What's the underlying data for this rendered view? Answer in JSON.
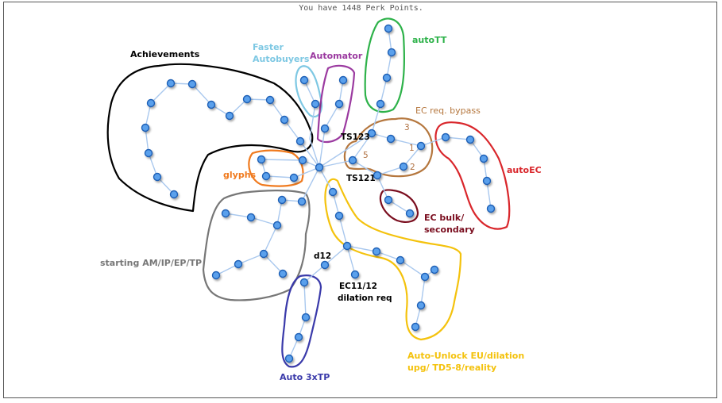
{
  "header": {
    "text": "You have 1448 Perk Points."
  },
  "labels": {
    "achievements": "Achievements",
    "faster_autobuyers_1": "Faster",
    "faster_autobuyers_2": "Autobuyers",
    "automator": "Automator",
    "autott": "autoTT",
    "ec_req_bypass": "EC req. bypass",
    "autoec": "autoEC",
    "ec_bulk_1": "EC bulk/",
    "ec_bulk_2": "secondary",
    "glyphs": "glyphs",
    "starting": "starting AM/IP/EP/TP",
    "auto_unlock_1": "Auto-Unlock EU/dilation",
    "auto_unlock_2": "upg/ TD5-8/reality",
    "auto_3xtp": "Auto 3xTP"
  },
  "tags": {
    "ts123": "TS123",
    "ts121": "TS121",
    "d12": "d12",
    "ec1112_1": "EC11/12",
    "ec1112_2": "dilation req"
  },
  "numbers": {
    "n1": "1",
    "n2": "2",
    "n3": "3",
    "n5": "5"
  },
  "colors": {
    "achievements": "#000000",
    "faster_autobuyers": "#7ec8e3",
    "automator": "#9b3aa0",
    "autott": "#2eb24a",
    "ec_req_bypass": "#b5773e",
    "autoec": "#d9262b",
    "ec_bulk": "#7a0d1e",
    "glyphs": "#f07a1e",
    "starting": "#777777",
    "auto_unlock": "#f4c20d",
    "auto_3xtp": "#3a3aaa",
    "node_fill": "#5aa0ec",
    "edge": "#a9c8ee"
  }
}
